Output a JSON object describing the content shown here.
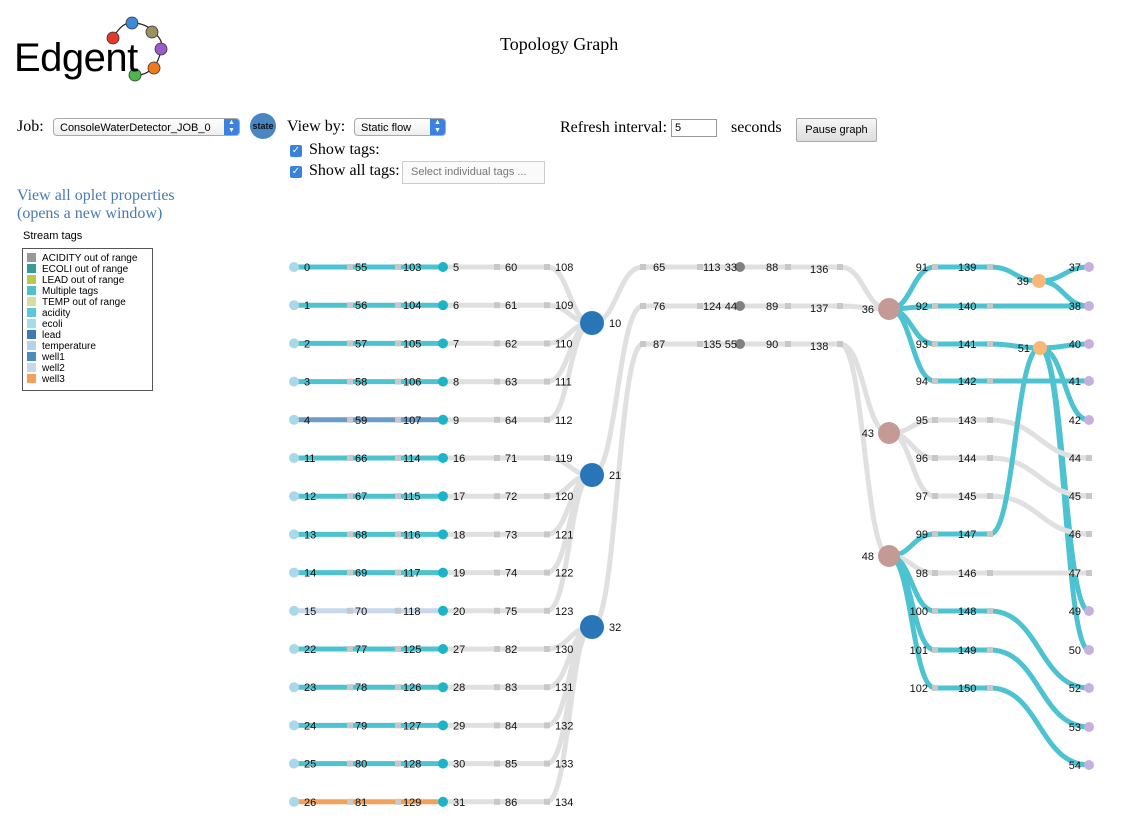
{
  "app": {
    "logo_text": "Edgent",
    "title": "Topology Graph"
  },
  "controls": {
    "job_label": "Job:",
    "job_value": "ConsoleWaterDetector_JOB_0",
    "state_button": "state",
    "view_by_label": "View by:",
    "view_by_value": "Static flow",
    "show_tags_label": "Show tags:",
    "show_all_tags_label": "Show all tags:",
    "tags_placeholder": "Select individual tags ...",
    "refresh_label": "Refresh interval:",
    "refresh_value": "5",
    "seconds_label": "seconds",
    "pause_button": "Pause graph"
  },
  "links": {
    "props_line1": "View all oplet properties",
    "props_line2": "(opens a new window)"
  },
  "legend": {
    "title": "Stream tags",
    "items": [
      {
        "label": "ACIDITY out of range",
        "color": "#999999"
      },
      {
        "label": "ECOLI out of range",
        "color": "#3a9a9a"
      },
      {
        "label": "LEAD out of range",
        "color": "#bcc84a"
      },
      {
        "label": "Multiple tags",
        "color": "#4dc3c9"
      },
      {
        "label": "TEMP out of range",
        "color": "#dcdca0"
      },
      {
        "label": "acidity",
        "color": "#5ac8d8"
      },
      {
        "label": "ecoli",
        "color": "#a8dcea"
      },
      {
        "label": "lead",
        "color": "#3c7ab8"
      },
      {
        "label": "temperature",
        "color": "#b8d0ec"
      },
      {
        "label": "well1",
        "color": "#4a8cc0"
      },
      {
        "label": "well2",
        "color": "#c8d8ec"
      },
      {
        "label": "well3",
        "color": "#f4a058"
      }
    ]
  },
  "graph": {
    "colors": {
      "source": "#a8d8ea",
      "stage": "#1cb4c8",
      "union": "#2876b8",
      "split": "#c49a94",
      "peek": "#808080",
      "filter": "#f9b878",
      "sink": "#c8b0de",
      "edge_default": "#e0e0e0",
      "edge_multi": "#4dc3d1",
      "edge_well2": "#c8d8ec",
      "edge_lead": "#6a9cc8",
      "edge_well3": "#f4a058"
    },
    "rows": [
      {
        "src": "0",
        "a": "55",
        "b": "103",
        "c": "5",
        "d": "60",
        "e": "108",
        "edge": "multi"
      },
      {
        "src": "1",
        "a": "56",
        "b": "104",
        "c": "6",
        "d": "61",
        "e": "109",
        "edge": "multi"
      },
      {
        "src": "2",
        "a": "57",
        "b": "105",
        "c": "7",
        "d": "62",
        "e": "110",
        "edge": "multi"
      },
      {
        "src": "3",
        "a": "58",
        "b": "106",
        "c": "8",
        "d": "63",
        "e": "111",
        "edge": "multi"
      },
      {
        "src": "4",
        "a": "59",
        "b": "107",
        "c": "9",
        "d": "64",
        "e": "112",
        "edge": "lead"
      },
      {
        "src": "11",
        "a": "66",
        "b": "114",
        "c": "16",
        "d": "71",
        "e": "119",
        "edge": "multi"
      },
      {
        "src": "12",
        "a": "67",
        "b": "115",
        "c": "17",
        "d": "72",
        "e": "120",
        "edge": "multi"
      },
      {
        "src": "13",
        "a": "68",
        "b": "116",
        "c": "18",
        "d": "73",
        "e": "121",
        "edge": "multi"
      },
      {
        "src": "14",
        "a": "69",
        "b": "117",
        "c": "19",
        "d": "74",
        "e": "122",
        "edge": "multi"
      },
      {
        "src": "15",
        "a": "70",
        "b": "118",
        "c": "20",
        "d": "75",
        "e": "123",
        "edge": "well2"
      },
      {
        "src": "22",
        "a": "77",
        "b": "125",
        "c": "27",
        "d": "82",
        "e": "130",
        "edge": "multi"
      },
      {
        "src": "23",
        "a": "78",
        "b": "126",
        "c": "28",
        "d": "83",
        "e": "131",
        "edge": "multi"
      },
      {
        "src": "24",
        "a": "79",
        "b": "127",
        "c": "29",
        "d": "84",
        "e": "132",
        "edge": "multi"
      },
      {
        "src": "25",
        "a": "80",
        "b": "128",
        "c": "30",
        "d": "85",
        "e": "133",
        "edge": "multi"
      },
      {
        "src": "26",
        "a": "81",
        "b": "129",
        "c": "31",
        "d": "86",
        "e": "134",
        "edge": "well3"
      }
    ],
    "unions": [
      {
        "label": "10",
        "from": [
          0,
          4
        ],
        "to": 0
      },
      {
        "label": "21",
        "from": [
          5,
          9
        ],
        "to": 1
      },
      {
        "label": "32",
        "from": [
          10,
          14
        ],
        "to": 2
      }
    ],
    "chains": [
      {
        "n1": "65",
        "n2": "113",
        "peek": "33",
        "n3": "88",
        "n4": "136",
        "split": 0
      },
      {
        "n1": "76",
        "n2": "124",
        "peek": "44",
        "n3": "89",
        "n4": "137",
        "split": 0
      },
      {
        "n1": "87",
        "n2": "135",
        "peek": "55",
        "n3": "90",
        "n4": "138",
        "split": 1
      }
    ],
    "splits": [
      {
        "label": "36"
      },
      {
        "label": "43"
      },
      {
        "label": "48"
      }
    ],
    "branches": [
      {
        "s": 0,
        "row": 0,
        "a": "91",
        "b": "139",
        "edge": "multi"
      },
      {
        "s": 0,
        "row": 1,
        "a": "92",
        "b": "140",
        "edge": "multi"
      },
      {
        "s": 0,
        "row": 2,
        "a": "93",
        "b": "141",
        "edge": "multi"
      },
      {
        "s": 0,
        "row": 3,
        "a": "94",
        "b": "142",
        "edge": "multi"
      },
      {
        "s": 1,
        "row": 4,
        "a": "95",
        "b": "143",
        "edge": "default"
      },
      {
        "s": 1,
        "row": 5,
        "a": "96",
        "b": "144",
        "edge": "default"
      },
      {
        "s": 1,
        "row": 6,
        "a": "97",
        "b": "145",
        "edge": "default"
      },
      {
        "s": 2,
        "row": 7,
        "a": "99",
        "b": "147",
        "edge": "multi"
      },
      {
        "s": 2,
        "row": 8,
        "a": "98",
        "b": "146",
        "edge": "default"
      },
      {
        "s": 2,
        "row": 9,
        "a": "100",
        "b": "148",
        "edge": "multi"
      },
      {
        "s": 2,
        "row": 10,
        "a": "101",
        "b": "149",
        "edge": "multi"
      },
      {
        "s": 2,
        "row": 11,
        "a": "102",
        "b": "150",
        "edge": "multi"
      }
    ],
    "filters": [
      {
        "label": "39"
      },
      {
        "label": "51"
      }
    ],
    "sinks": [
      {
        "label": "37",
        "tagged": true
      },
      {
        "label": "38",
        "tagged": true
      },
      {
        "label": "40",
        "tagged": true
      },
      {
        "label": "41",
        "tagged": true
      },
      {
        "label": "42",
        "tagged": true
      },
      {
        "label": "44",
        "tagged": false
      },
      {
        "label": "45",
        "tagged": false
      },
      {
        "label": "46",
        "tagged": false
      },
      {
        "label": "47",
        "tagged": false
      },
      {
        "label": "49",
        "tagged": true
      },
      {
        "label": "50",
        "tagged": true
      },
      {
        "label": "52",
        "tagged": true
      },
      {
        "label": "53",
        "tagged": true
      },
      {
        "label": "54",
        "tagged": true
      }
    ]
  }
}
